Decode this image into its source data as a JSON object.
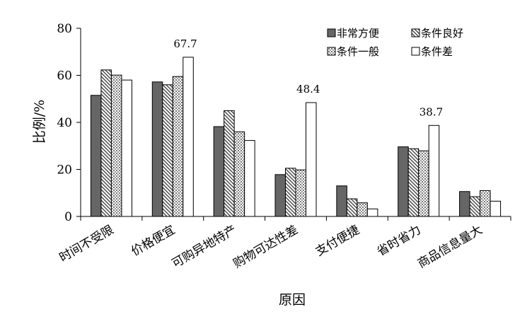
{
  "chart_data": {
    "type": "bar",
    "title": "",
    "xlabel": "原因",
    "ylabel": "比例/%",
    "ylim": [
      0,
      80
    ],
    "yticks": [
      0,
      20,
      40,
      60,
      80
    ],
    "grid": false,
    "legend_position": "top-right",
    "categories": [
      "时间不受限",
      "价格便宜",
      "可购异地特产",
      "购物可达性差",
      "支付便捷",
      "省时省力",
      "商品信息量大"
    ],
    "series": [
      {
        "name": "非常方便",
        "values": [
          51.5,
          57.2,
          38.2,
          17.8,
          13.0,
          29.6,
          10.6
        ],
        "pattern": "solid-gray",
        "color": "#666666"
      },
      {
        "name": "条件良好",
        "values": [
          62.3,
          56.0,
          45.0,
          20.5,
          7.5,
          28.8,
          8.4
        ],
        "pattern": "diagonal-hatch",
        "color": "#999999"
      },
      {
        "name": "条件一般",
        "values": [
          60.1,
          59.5,
          36.0,
          19.8,
          5.8,
          27.9,
          11.0
        ],
        "pattern": "dotted",
        "color": "#bbbbbb"
      },
      {
        "name": "条件差",
        "values": [
          58.0,
          67.7,
          32.3,
          48.4,
          3.2,
          38.7,
          6.5
        ],
        "pattern": "white",
        "color": "#ffffff"
      }
    ],
    "data_labels": [
      {
        "category_index": 1,
        "series_index": 3,
        "text": "67.7"
      },
      {
        "category_index": 3,
        "series_index": 3,
        "text": "48.4"
      },
      {
        "category_index": 5,
        "series_index": 3,
        "text": "38.7"
      }
    ]
  }
}
